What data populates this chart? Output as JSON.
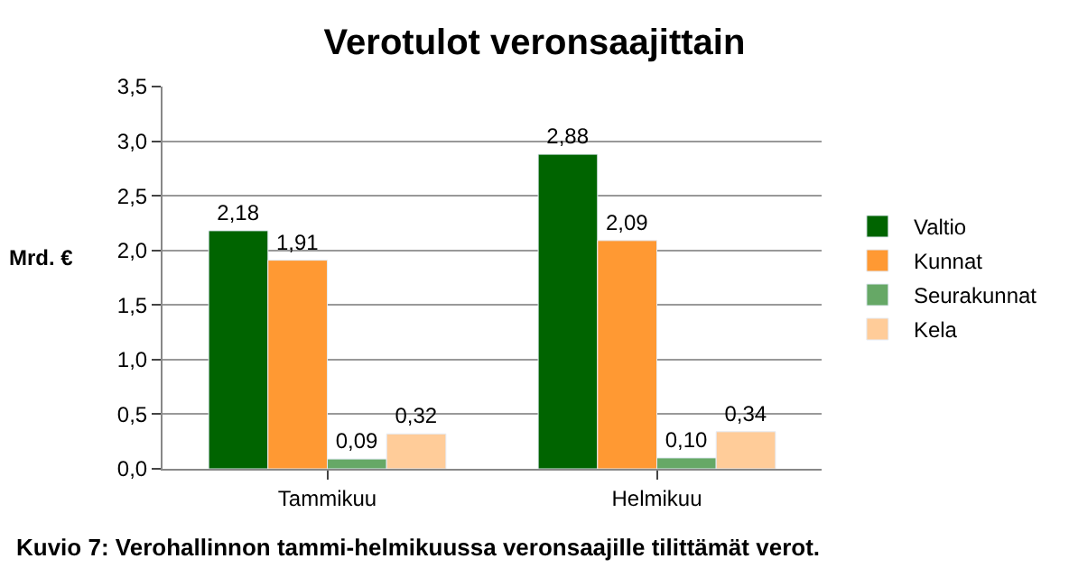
{
  "chart_data": {
    "type": "bar",
    "title": "Verotulot veronsaajittain",
    "ylabel": "Mrd. €",
    "categories": [
      "Tammikuu",
      "Helmikuu"
    ],
    "series": [
      {
        "name": "Valtio",
        "color": "#006400",
        "values": [
          2.18,
          2.88
        ],
        "value_labels": [
          "2,18",
          "2,88"
        ]
      },
      {
        "name": "Kunnat",
        "color": "#ff9933",
        "values": [
          1.91,
          2.09
        ],
        "value_labels": [
          "1,91",
          "2,09"
        ]
      },
      {
        "name": "Seurakunnat",
        "color": "#66a866",
        "values": [
          0.09,
          0.1
        ],
        "value_labels": [
          "0,09",
          "0,10"
        ]
      },
      {
        "name": "Kela",
        "color": "#ffcc99",
        "values": [
          0.32,
          0.34
        ],
        "value_labels": [
          "0,32",
          "0,34"
        ]
      }
    ],
    "ylim": [
      0,
      3.5
    ],
    "yticks": [
      {
        "value": 0,
        "label": "0,0"
      },
      {
        "value": 0.5,
        "label": "0,5"
      },
      {
        "value": 1.0,
        "label": "1,0"
      },
      {
        "value": 1.5,
        "label": "1,5"
      },
      {
        "value": 2.0,
        "label": "2,0"
      },
      {
        "value": 2.5,
        "label": "2,5"
      },
      {
        "value": 3.0,
        "label": "3,0"
      },
      {
        "value": 3.5,
        "label": "3,5"
      }
    ],
    "grid": "y",
    "legend": "right",
    "annotations": [
      "Kuvio 7: Verohallinnon tammi-helmikuussa veronsaajille tilittämät verot."
    ]
  }
}
